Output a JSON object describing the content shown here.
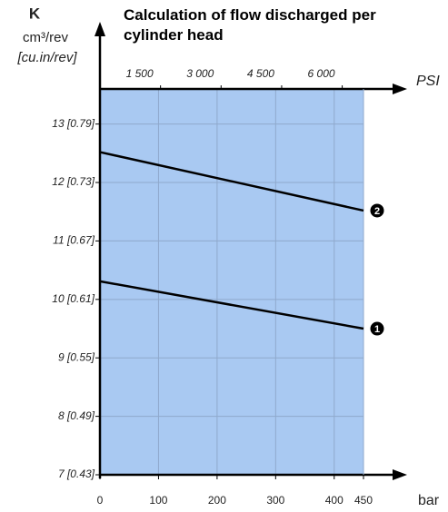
{
  "chart_data": {
    "type": "line",
    "title": "Calculation of flow discharged per cylinder head",
    "y_label": "K",
    "y_unit": "cm³/rev",
    "y_unit_imperial": "[cu.in/rev]",
    "x_label": "bar",
    "x2_label": "PSI",
    "x": [
      0,
      450
    ],
    "series": [
      {
        "name": "2",
        "color": "#000000",
        "values": [
          12.52,
          11.52
        ]
      },
      {
        "name": "1",
        "color": "#000000",
        "values": [
          10.31,
          9.5
        ]
      }
    ],
    "xlim": [
      0,
      450
    ],
    "xticks": [
      0,
      100,
      200,
      300,
      400,
      450
    ],
    "x2lim": [
      0,
      6527
    ],
    "x2ticks": [
      {
        "value": 1500,
        "label": "1 500"
      },
      {
        "value": 3000,
        "label": "3 000"
      },
      {
        "value": 4500,
        "label": "4 500"
      },
      {
        "value": 6000,
        "label": "6 000"
      }
    ],
    "ylim": [
      7,
      13.6
    ],
    "yticks": [
      {
        "value": 7,
        "label": "7 [0.43]"
      },
      {
        "value": 8,
        "label": "8 [0.49]"
      },
      {
        "value": 9,
        "label": "9 [0.55]"
      },
      {
        "value": 10,
        "label": "10 [0.61]"
      },
      {
        "value": 11,
        "label": "11 [0.67]"
      },
      {
        "value": 12,
        "label": "12 [0.73]"
      },
      {
        "value": 13,
        "label": "13 [0.79]"
      }
    ],
    "grid": true,
    "background": "#a9c9f2"
  }
}
